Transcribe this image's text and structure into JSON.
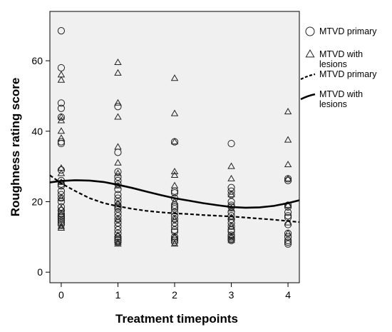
{
  "chart_data": {
    "type": "scatter",
    "xlabel": "Treatment timepoints",
    "ylabel": "Roughness rating score",
    "x_ticks": [
      0,
      1,
      2,
      3,
      4
    ],
    "y_ticks": [
      0,
      20,
      40,
      60
    ],
    "xlim": [
      -0.2,
      4.2
    ],
    "ylim": [
      -3,
      74
    ],
    "grid": false,
    "background": "#f0f0f0",
    "legend_position": "right",
    "series": [
      {
        "name": "MTVD primary",
        "kind": "points",
        "marker": "circle",
        "points": [
          [
            0,
            68.5
          ],
          [
            0,
            58
          ],
          [
            0,
            48
          ],
          [
            0,
            46.5
          ],
          [
            0,
            44
          ],
          [
            0,
            37
          ],
          [
            0,
            36.5
          ],
          [
            0,
            29
          ],
          [
            0,
            26
          ],
          [
            0,
            25
          ],
          [
            0,
            24.5
          ],
          [
            0,
            23
          ],
          [
            0,
            22
          ],
          [
            0,
            21
          ],
          [
            0,
            20
          ],
          [
            0,
            18.5
          ],
          [
            0,
            17.5
          ],
          [
            0,
            16.5
          ],
          [
            0,
            16
          ],
          [
            0,
            15.5
          ],
          [
            0,
            15
          ],
          [
            0,
            14.5
          ],
          [
            0,
            14
          ],
          [
            0,
            13.5
          ],
          [
            1,
            47
          ],
          [
            1,
            34
          ],
          [
            1,
            28.5
          ],
          [
            1,
            27
          ],
          [
            1,
            26
          ],
          [
            1,
            25
          ],
          [
            1,
            23.5
          ],
          [
            1,
            22
          ],
          [
            1,
            21
          ],
          [
            1,
            20
          ],
          [
            1,
            19
          ],
          [
            1,
            18.5
          ],
          [
            1,
            18
          ],
          [
            1,
            17
          ],
          [
            1,
            16
          ],
          [
            1,
            15
          ],
          [
            1,
            14
          ],
          [
            1,
            13
          ],
          [
            1,
            12
          ],
          [
            1,
            11
          ],
          [
            1,
            10
          ],
          [
            1,
            9.5
          ],
          [
            1,
            9
          ],
          [
            1,
            8.5
          ],
          [
            2,
            37
          ],
          [
            2,
            23
          ],
          [
            2,
            22.5
          ],
          [
            2,
            21
          ],
          [
            2,
            19
          ],
          [
            2,
            18.5
          ],
          [
            2,
            18
          ],
          [
            2,
            17
          ],
          [
            2,
            16
          ],
          [
            2,
            15
          ],
          [
            2,
            14
          ],
          [
            2,
            13
          ],
          [
            2,
            12
          ],
          [
            2,
            11.5
          ],
          [
            2,
            10
          ],
          [
            2,
            9.5
          ],
          [
            2,
            9
          ],
          [
            2,
            8.5
          ],
          [
            3,
            36.5
          ],
          [
            3,
            24
          ],
          [
            3,
            23
          ],
          [
            3,
            22
          ],
          [
            3,
            20
          ],
          [
            3,
            19
          ],
          [
            3,
            18.5
          ],
          [
            3,
            17
          ],
          [
            3,
            16
          ],
          [
            3,
            15
          ],
          [
            3,
            14
          ],
          [
            3,
            13
          ],
          [
            3,
            12
          ],
          [
            3,
            11.5
          ],
          [
            3,
            10.5
          ],
          [
            3,
            10
          ],
          [
            3,
            9.5
          ],
          [
            3,
            9
          ],
          [
            4,
            26.5
          ],
          [
            4,
            26
          ],
          [
            4,
            19
          ],
          [
            4,
            18.5
          ],
          [
            4,
            17
          ],
          [
            4,
            16
          ],
          [
            4,
            15.5
          ],
          [
            4,
            13.5
          ],
          [
            4,
            11
          ],
          [
            4,
            10
          ],
          [
            4,
            9
          ],
          [
            4,
            8.5
          ],
          [
            4,
            8
          ]
        ]
      },
      {
        "name": "MTVD with lesions",
        "kind": "points",
        "marker": "triangle",
        "points": [
          [
            0,
            56
          ],
          [
            0,
            54.5
          ],
          [
            0,
            44
          ],
          [
            0,
            43
          ],
          [
            0,
            40
          ],
          [
            0,
            38
          ],
          [
            0,
            29.5
          ],
          [
            0,
            28
          ],
          [
            0,
            25.5
          ],
          [
            0,
            21
          ],
          [
            0,
            18
          ],
          [
            0,
            16.5
          ],
          [
            0,
            13
          ],
          [
            0,
            12.5
          ],
          [
            1,
            59.5
          ],
          [
            1,
            56.5
          ],
          [
            1,
            48
          ],
          [
            1,
            44
          ],
          [
            1,
            35.5
          ],
          [
            1,
            31
          ],
          [
            1,
            28
          ],
          [
            1,
            24.5
          ],
          [
            1,
            19.5
          ],
          [
            1,
            15
          ],
          [
            1,
            10.5
          ],
          [
            1,
            8.5
          ],
          [
            1,
            8
          ],
          [
            2,
            55
          ],
          [
            2,
            45
          ],
          [
            2,
            37
          ],
          [
            2,
            28.5
          ],
          [
            2,
            27.5
          ],
          [
            2,
            24.5
          ],
          [
            2,
            20
          ],
          [
            2,
            15
          ],
          [
            2,
            10
          ],
          [
            2,
            8
          ],
          [
            3,
            30
          ],
          [
            3,
            26.5
          ],
          [
            3,
            22
          ],
          [
            3,
            18
          ],
          [
            3,
            15.5
          ],
          [
            3,
            13
          ],
          [
            3,
            10
          ],
          [
            3,
            9
          ],
          [
            4,
            45.5
          ],
          [
            4,
            37.5
          ],
          [
            4,
            30.5
          ],
          [
            4,
            26.5
          ],
          [
            4,
            19
          ],
          [
            4,
            14
          ],
          [
            4,
            11
          ]
        ]
      },
      {
        "name": "MTVD primary",
        "kind": "line",
        "style": "dashed",
        "points": [
          [
            -0.2,
            27.5
          ],
          [
            0,
            25.2
          ],
          [
            0.25,
            23
          ],
          [
            0.5,
            21
          ],
          [
            0.75,
            19.6
          ],
          [
            1,
            18.7
          ],
          [
            1.25,
            18
          ],
          [
            1.5,
            17.4
          ],
          [
            1.75,
            17
          ],
          [
            2,
            16.7
          ],
          [
            2.25,
            16.5
          ],
          [
            2.5,
            16.2
          ],
          [
            2.75,
            16
          ],
          [
            3,
            15.8
          ],
          [
            3.25,
            15.5
          ],
          [
            3.5,
            15.2
          ],
          [
            3.75,
            14.9
          ],
          [
            4,
            14.5
          ],
          [
            4.2,
            14.2
          ]
        ]
      },
      {
        "name": "MTVD with lesions",
        "kind": "line",
        "style": "solid",
        "points": [
          [
            -0.2,
            25.5
          ],
          [
            0,
            25.9
          ],
          [
            0.25,
            26.1
          ],
          [
            0.5,
            26
          ],
          [
            0.75,
            25.6
          ],
          [
            1,
            24.8
          ],
          [
            1.25,
            23.9
          ],
          [
            1.5,
            22.9
          ],
          [
            1.75,
            21.9
          ],
          [
            2,
            21
          ],
          [
            2.25,
            20.3
          ],
          [
            2.5,
            19.6
          ],
          [
            2.75,
            19
          ],
          [
            3,
            18.5
          ],
          [
            3.25,
            18.3
          ],
          [
            3.5,
            18.4
          ],
          [
            3.75,
            18.8
          ],
          [
            4,
            19.6
          ],
          [
            4.2,
            20.4
          ]
        ]
      }
    ]
  }
}
